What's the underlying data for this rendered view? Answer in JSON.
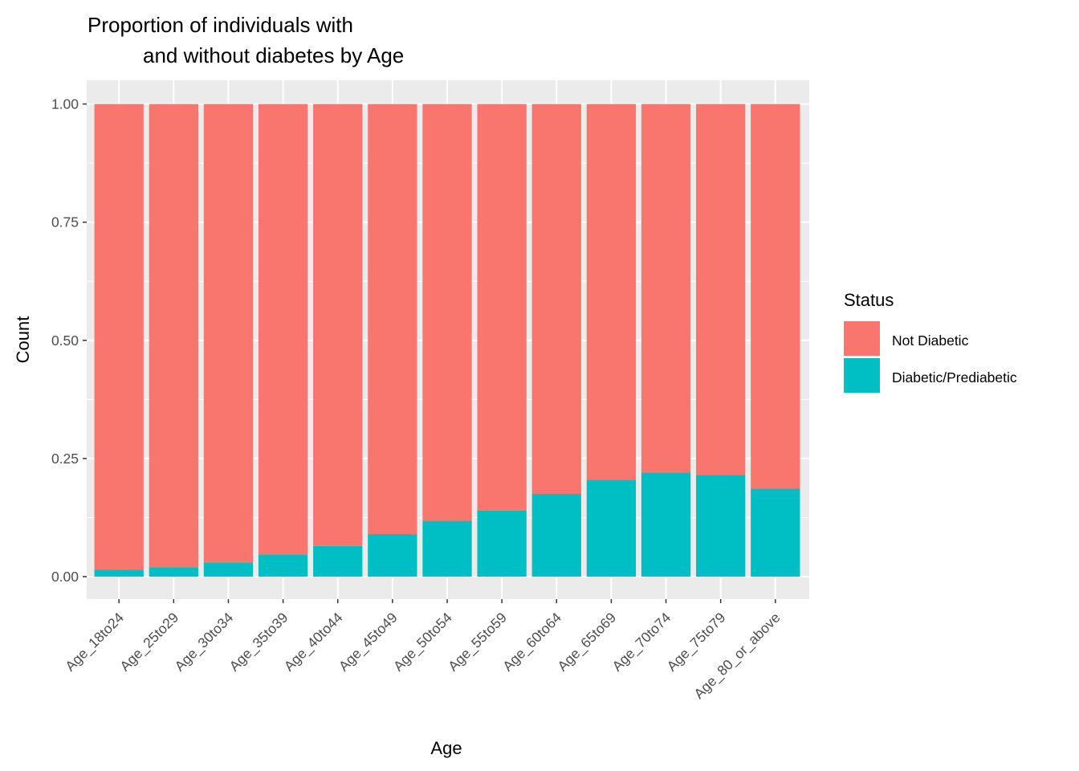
{
  "chart_data": {
    "type": "bar",
    "stacked": true,
    "title_lines": [
      "Proportion of individuals with",
      "and without diabetes by Age"
    ],
    "xlabel": "Age",
    "ylabel": "Count",
    "ylim": [
      0,
      1
    ],
    "y_ticks": [
      "0.00",
      "0.25",
      "0.50",
      "0.75",
      "1.00"
    ],
    "y_tick_values": [
      0,
      0.25,
      0.5,
      0.75,
      1.0
    ],
    "grid": true,
    "legend": {
      "title": "Status",
      "position": "right",
      "entries": [
        {
          "label": "Not Diabetic",
          "color": "#F8766D"
        },
        {
          "label": "Diabetic/Prediabetic",
          "color": "#00BFC4"
        }
      ]
    },
    "categories": [
      "Age_18to24",
      "Age_25to29",
      "Age_30to34",
      "Age_35to39",
      "Age_40to44",
      "Age_45to49",
      "Age_50to54",
      "Age_55to59",
      "Age_60to64",
      "Age_65to69",
      "Age_70to74",
      "Age_75to79",
      "Age_80_or_above"
    ],
    "series": [
      {
        "name": "Diabetic/Prediabetic",
        "color": "#00BFC4",
        "values": [
          0.015,
          0.02,
          0.03,
          0.047,
          0.065,
          0.09,
          0.118,
          0.14,
          0.175,
          0.205,
          0.22,
          0.215,
          0.186
        ]
      },
      {
        "name": "Not Diabetic",
        "color": "#F8766D",
        "values": [
          0.985,
          0.98,
          0.97,
          0.953,
          0.935,
          0.91,
          0.882,
          0.86,
          0.825,
          0.795,
          0.78,
          0.785,
          0.814
        ]
      }
    ]
  }
}
